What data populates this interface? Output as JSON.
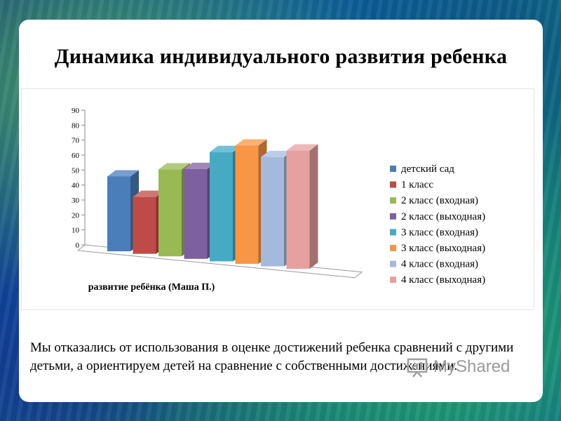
{
  "slide": {
    "title": "Динамика индивидуального развития ребенка",
    "body_text": "Мы отказались от использования в оценке достижений ребенка сравнений с другими детьми, а ориентируем детей на сравнение с собственными достижениями."
  },
  "watermark": {
    "text": "MyShared",
    "icon": "presentation-board-icon"
  },
  "chart_data": {
    "type": "bar",
    "style": "3d-column",
    "xlabel": "развитие ребёнка (Маша П.)",
    "ylabel": "",
    "ylim": [
      0,
      90
    ],
    "yticks": [
      0,
      10,
      20,
      30,
      40,
      50,
      60,
      70,
      80,
      90
    ],
    "grid": false,
    "legend_position": "right",
    "series": [
      {
        "name": "детский сад",
        "value": 50,
        "color": "#4a7ebb"
      },
      {
        "name": "1 класс",
        "value": 38,
        "color": "#be4b48"
      },
      {
        "name": "2 класс (входная)",
        "value": 58,
        "color": "#98b954"
      },
      {
        "name": "2 класс (выходная)",
        "value": 60,
        "color": "#7d60a0"
      },
      {
        "name": "3 класс (входная)",
        "value": 73,
        "color": "#46aac5"
      },
      {
        "name": "3 класс (выходная)",
        "value": 79,
        "color": "#f79646"
      },
      {
        "name": "4 класс (входная)",
        "value": 73,
        "color": "#a5b9dd"
      },
      {
        "name": "4 класс (выходная)",
        "value": 79,
        "color": "#e6a0a0"
      }
    ]
  }
}
